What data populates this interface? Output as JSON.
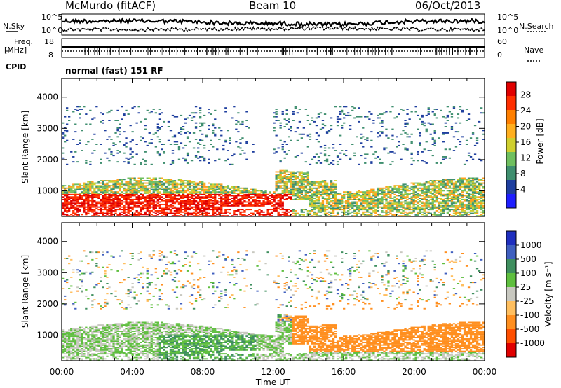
{
  "header": {
    "station": "McMurdo (fitACF)",
    "beam": "Beam 10",
    "date": "06/Oct/2013"
  },
  "summary": {
    "nsky_label": "N.Sky",
    "nsky_ticks": [
      "10^5",
      "10^0"
    ],
    "nsearch_label": "N.Search",
    "nsearch_ticks": [
      "10^5",
      "10^0"
    ],
    "freq_label_1": "Freq.",
    "freq_label_2": "[MHz]",
    "freq_ticks": [
      "18",
      "8"
    ],
    "nave_label": "Nave",
    "nave_ticks": [
      "60",
      "0"
    ],
    "cpid_label": "CPID",
    "cpid_text": "normal (fast) 151 RF"
  },
  "colors": {
    "power": [
      "#1f1fff",
      "#1f3f9f",
      "#3f8f6f",
      "#6fbf5f",
      "#cfcf2f",
      "#ff9f1f",
      "#ff6f00",
      "#ff2f00",
      "#e00000"
    ],
    "velocity": [
      "#e00000",
      "#ff4f00",
      "#ff8f1f",
      "#ffbf5f",
      "#c8c8c0",
      "#5fbf3f",
      "#3f8f5f",
      "#3f5fbf",
      "#1f2fbf"
    ]
  },
  "chart_data": [
    {
      "type": "heatmap",
      "name": "Power",
      "ylabel": "Slant Range [km]",
      "xlim_hours": [
        0,
        24
      ],
      "ylim": [
        180,
        4600
      ],
      "yticks": [
        "1000",
        "2000",
        "3000",
        "4000"
      ],
      "colorbar_label": "Power [dB]",
      "colorbar_ticks": [
        "4",
        "8",
        "12",
        "16",
        "20",
        "24",
        "28"
      ],
      "colorbar_range": [
        0,
        32
      ]
    },
    {
      "type": "heatmap",
      "name": "Velocity",
      "ylabel": "Slant Range [km]",
      "xlabel": "Time UT",
      "xticks": [
        "00:00",
        "04:00",
        "08:00",
        "12:00",
        "16:00",
        "20:00",
        "00:00"
      ],
      "xlim_hours": [
        0,
        24
      ],
      "ylim": [
        180,
        4600
      ],
      "yticks": [
        "1000",
        "2000",
        "3000",
        "4000"
      ],
      "colorbar_label": "Velocity [m s⁻¹]",
      "colorbar_ticks": [
        "1000",
        "500",
        "100",
        "25",
        "-25",
        "-100",
        "-500",
        "-1000"
      ]
    }
  ]
}
